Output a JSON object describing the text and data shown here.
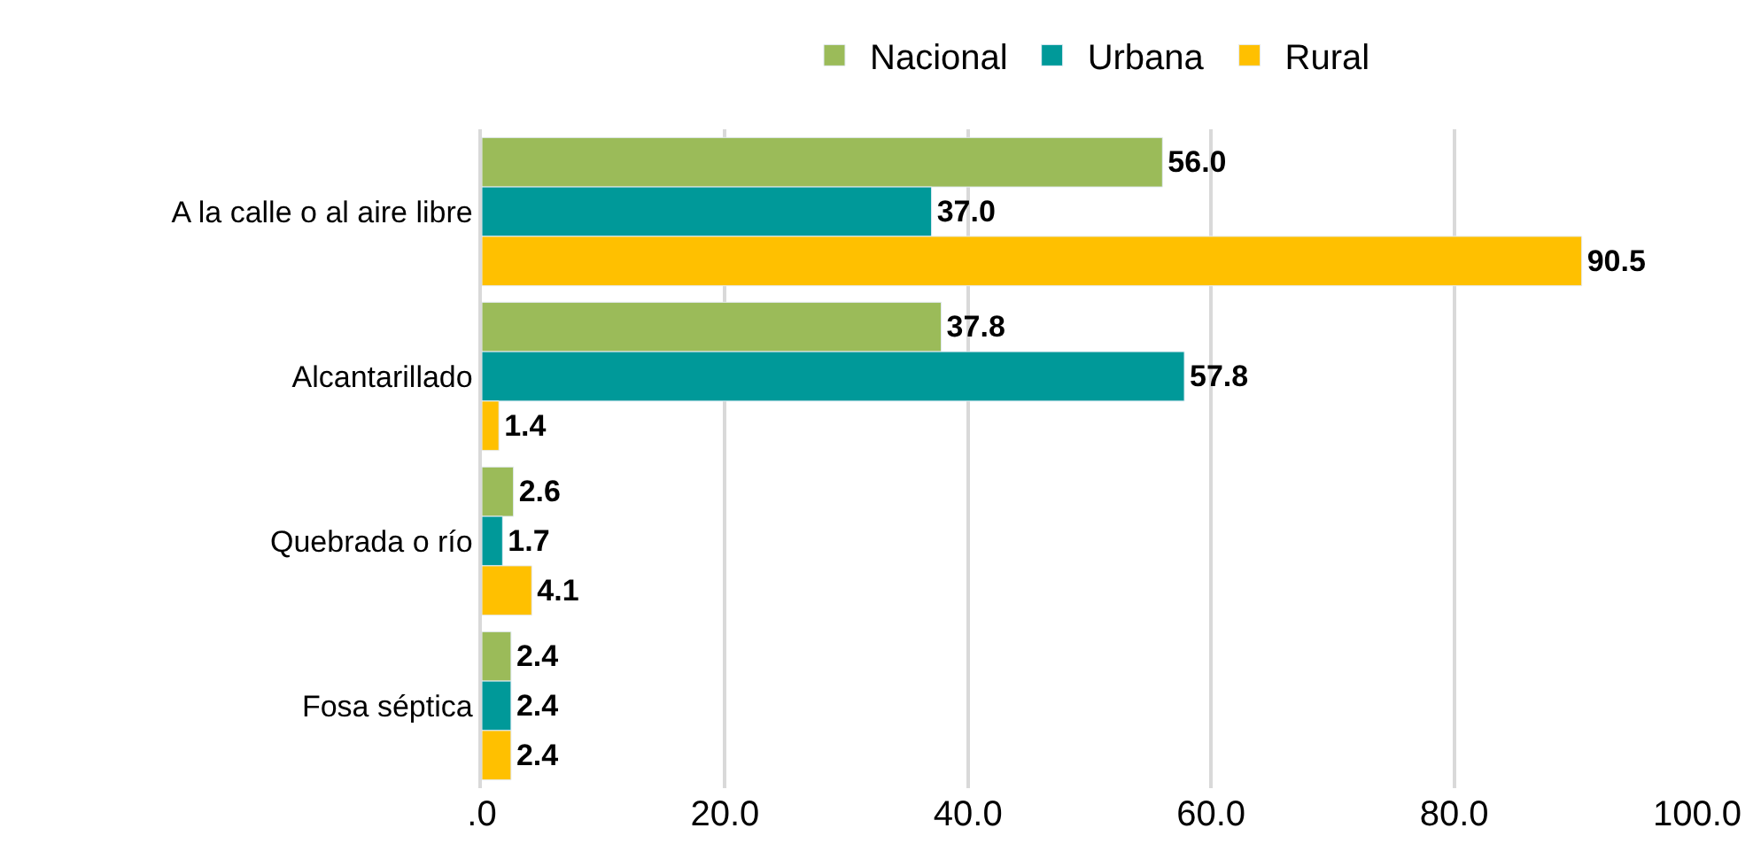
{
  "chart_data": {
    "type": "bar",
    "orientation": "horizontal",
    "categories": [
      "A la calle o al aire libre",
      "Alcantarillado",
      "Quebrada o río",
      "Fosa séptica"
    ],
    "series": [
      {
        "name": "Nacional",
        "color": "#9bbb59",
        "values": [
          56.0,
          37.8,
          2.6,
          2.4
        ],
        "value_labels": [
          "56.0",
          "37.8",
          "2.6",
          "2.4"
        ]
      },
      {
        "name": "Urbana",
        "color": "#009999",
        "values": [
          37.0,
          57.8,
          1.7,
          2.4
        ],
        "value_labels": [
          "37.0",
          "57.8",
          "1.7",
          "2.4"
        ]
      },
      {
        "name": "Rural",
        "color": "#ffc000",
        "values": [
          90.5,
          1.4,
          4.1,
          2.4
        ],
        "value_labels": [
          "90.5",
          "1.4",
          "4.1",
          "2.4"
        ]
      }
    ],
    "xlim": [
      0,
      100
    ],
    "xticks": [
      {
        "value": 0,
        "label": ".0"
      },
      {
        "value": 20,
        "label": "20.0"
      },
      {
        "value": 40,
        "label": "40.0"
      },
      {
        "value": 60,
        "label": "60.0"
      },
      {
        "value": 80,
        "label": "80.0"
      },
      {
        "value": 100,
        "label": "100.0"
      }
    ],
    "grid": "x",
    "legend": "top"
  }
}
